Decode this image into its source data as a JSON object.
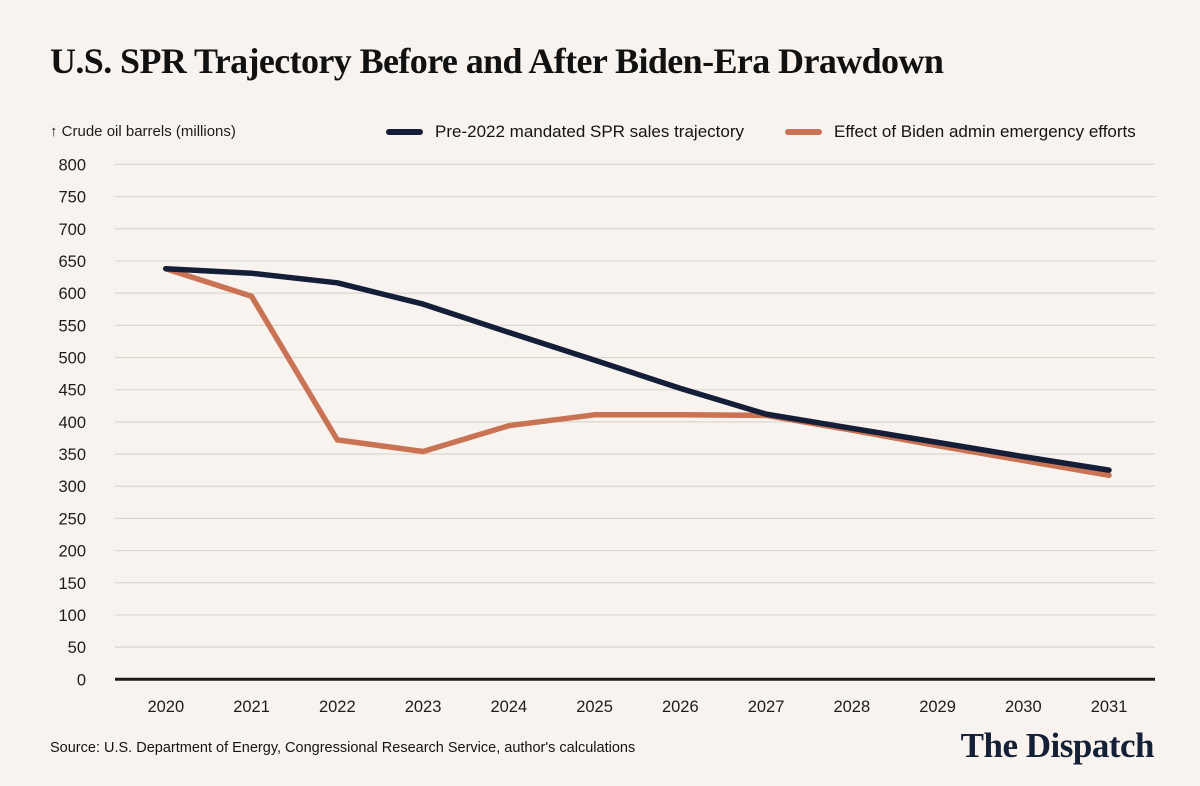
{
  "title": "U.S. SPR Trajectory Before and After Biden-Era Drawdown",
  "y_axis_note": {
    "arrow": "↑",
    "label": "Crude oil barrels (millions)"
  },
  "legend": {
    "items": [
      {
        "label": "Pre-2022 mandated SPR sales trajectory"
      },
      {
        "label": "Effect of Biden admin emergency efforts"
      }
    ]
  },
  "footer": {
    "source": "Source: U.S. Department of Energy, Congressional Research Service, author's calculations",
    "logo": "The Dispatch"
  },
  "colors": {
    "background": "#f8f3ee",
    "grid": "#dcd6d0",
    "axis": "#1b1b1b",
    "navy": "#141e38",
    "orange": "#c97254",
    "logo_navy": "#132038"
  },
  "chart_data": {
    "type": "line",
    "title": "U.S. SPR Trajectory Before and After Biden-Era Drawdown",
    "xlabel": "",
    "ylabel": "Crude oil barrels (millions)",
    "x": [
      2020,
      2021,
      2022,
      2023,
      2024,
      2025,
      2026,
      2027,
      2028,
      2029,
      2030,
      2031
    ],
    "series": [
      {
        "name": "Pre-2022 mandated SPR sales trajectory",
        "color": "#141e38",
        "values": [
          638,
          631,
          616,
          583,
          539,
          496,
          452,
          412,
          390,
          368,
          346,
          325
        ]
      },
      {
        "name": "Effect of Biden admin emergency efforts",
        "color": "#c97254",
        "values": [
          638,
          595,
          372,
          354,
          394,
          411,
          411,
          410,
          387,
          363,
          340,
          317
        ]
      }
    ],
    "ylim": [
      0,
      800
    ],
    "yticks": [
      0,
      50,
      100,
      150,
      200,
      250,
      300,
      350,
      400,
      450,
      500,
      550,
      600,
      650,
      700,
      750,
      800
    ],
    "grid": true,
    "legend_position": "top"
  }
}
